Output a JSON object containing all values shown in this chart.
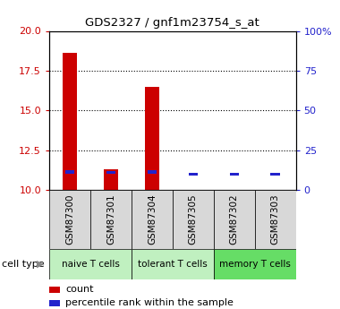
{
  "title": "GDS2327 / gnf1m23754_s_at",
  "samples": [
    "GSM87300",
    "GSM87301",
    "GSM87304",
    "GSM87305",
    "GSM87302",
    "GSM87303"
  ],
  "counts": [
    18.6,
    11.3,
    16.5,
    10.0,
    10.0,
    10.0
  ],
  "percentile_ranks": [
    11.35,
    11.25,
    11.35,
    10.0,
    10.0,
    10.0
  ],
  "ylim_left": [
    10,
    20
  ],
  "ylim_right": [
    0,
    100
  ],
  "yticks_left": [
    10,
    12.5,
    15,
    17.5,
    20
  ],
  "yticks_right": [
    0,
    25,
    50,
    75,
    100
  ],
  "ytick_labels_right": [
    "0",
    "25",
    "50",
    "75",
    "100%"
  ],
  "bar_width": 0.35,
  "count_color": "#cc0000",
  "percentile_color": "#2222cc",
  "cell_type_label": "cell type",
  "legend_count": "count",
  "legend_percentile": "percentile rank within the sample",
  "bar_area_bg": "#d8d8d8",
  "naive_color": "#c0f0c0",
  "tolerant_color": "#c0f0c0",
  "memory_color": "#66dd66",
  "groups": [
    {
      "label": "naive T cells",
      "start": 0,
      "end": 2,
      "color": "#c0f0c0"
    },
    {
      "label": "tolerant T cells",
      "start": 2,
      "end": 4,
      "color": "#c0f0c0"
    },
    {
      "label": "memory T cells",
      "start": 4,
      "end": 6,
      "color": "#66dd66"
    }
  ]
}
